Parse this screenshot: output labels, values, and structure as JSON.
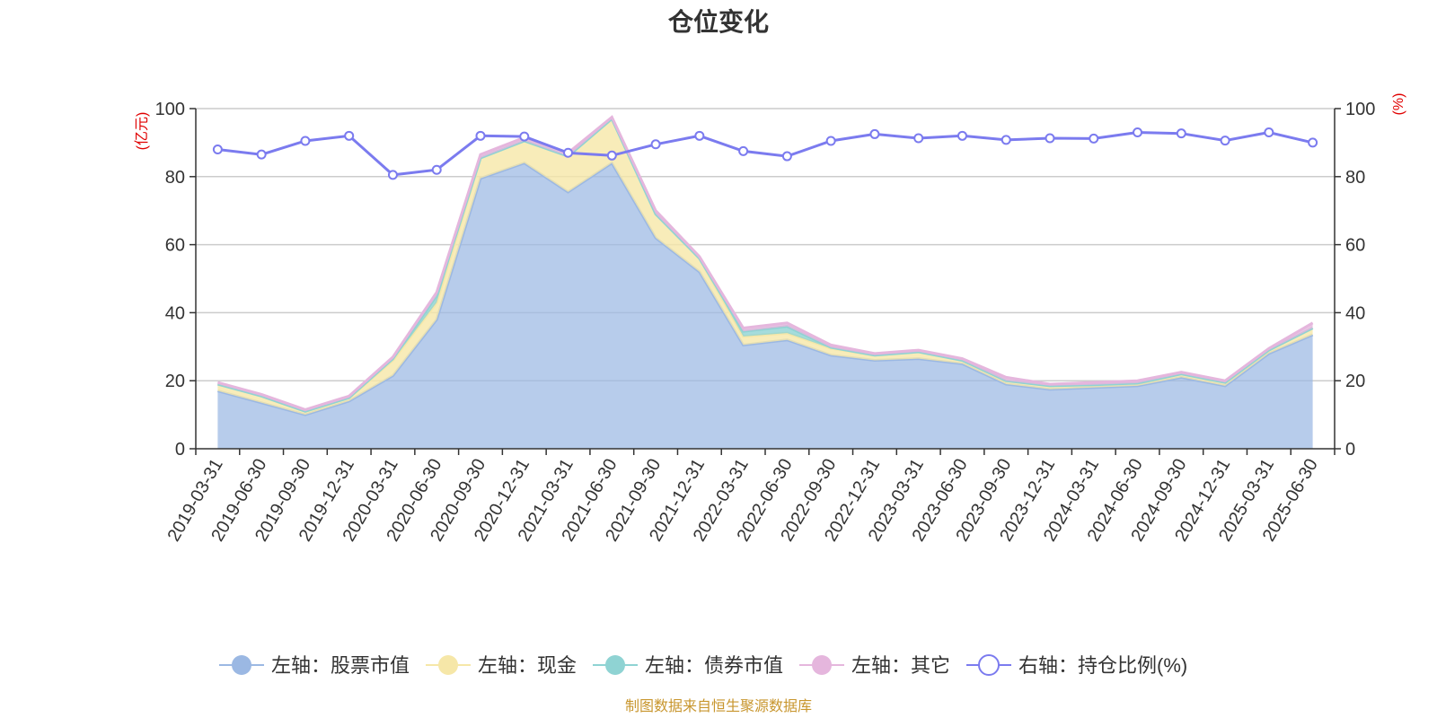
{
  "chart_data": {
    "type": "area",
    "title": "仓位变化",
    "y_left_unit": "(亿元)",
    "y_right_unit": "(%)",
    "ylim_left": [
      0,
      100
    ],
    "ylim_right": [
      0,
      100
    ],
    "yticks": [
      0,
      20,
      40,
      60,
      80,
      100
    ],
    "grid": true,
    "legend_position": "bottom",
    "source_note": "制图数据来自恒生聚源数据库",
    "categories": [
      "2019-03-31",
      "2019-06-30",
      "2019-09-30",
      "2019-12-31",
      "2020-03-31",
      "2020-06-30",
      "2020-09-30",
      "2020-12-31",
      "2021-03-31",
      "2021-06-30",
      "2021-09-30",
      "2021-12-31",
      "2022-03-31",
      "2022-06-30",
      "2022-09-30",
      "2022-12-31",
      "2023-03-31",
      "2023-06-30",
      "2023-09-30",
      "2023-12-31",
      "2024-03-31",
      "2024-06-30",
      "2024-09-30",
      "2024-12-31",
      "2025-03-31",
      "2025-06-30"
    ],
    "series": [
      {
        "name": "左轴：股票市值",
        "axis": "left",
        "color": "#9bb8e3",
        "values": [
          17,
          13.5,
          10,
          14,
          21.5,
          38,
          79.5,
          84,
          75.5,
          84,
          62,
          52,
          30.5,
          32,
          27.5,
          26,
          26.5,
          25,
          19,
          17.5,
          18,
          18.5,
          21,
          18.5,
          28,
          33.5
        ]
      },
      {
        "name": "左轴：现金",
        "axis": "left",
        "color": "#f6e7a8",
        "values": [
          2,
          2,
          1,
          1,
          4.5,
          5,
          6,
          6.5,
          10.5,
          13,
          7,
          4,
          2.5,
          2,
          2,
          1.5,
          2,
          1,
          1,
          1,
          0.8,
          0.8,
          1,
          1,
          1,
          2
        ]
      },
      {
        "name": "左轴：债券市值",
        "axis": "left",
        "color": "#8fd3d3",
        "values": [
          0,
          0,
          0,
          0,
          0.5,
          2,
          0,
          0,
          0,
          0,
          0,
          0,
          1.5,
          2,
          0.3,
          0,
          0,
          0,
          0,
          0,
          0,
          0,
          0,
          0,
          0,
          0
        ]
      },
      {
        "name": "左轴：其它",
        "axis": "left",
        "color": "#e5b6dd",
        "values": [
          0.5,
          0.5,
          0.5,
          0.5,
          0.5,
          1,
          1,
          1,
          1,
          0.5,
          1,
          0.5,
          1,
          1,
          0.7,
          0.5,
          0.5,
          0.5,
          1,
          0.5,
          0.7,
          0.7,
          0.5,
          0.5,
          0.5,
          1.5
        ]
      },
      {
        "name": "右轴：持仓比例(%)",
        "axis": "right",
        "color": "#7b7bef",
        "values": [
          88,
          86.5,
          90.5,
          92,
          80.5,
          82,
          92,
          91.8,
          87,
          86.2,
          89.5,
          92,
          87.5,
          86,
          90.5,
          92.5,
          91.3,
          92,
          90.8,
          91.3,
          91.2,
          93,
          92.7,
          90.6,
          93,
          90
        ]
      }
    ]
  }
}
